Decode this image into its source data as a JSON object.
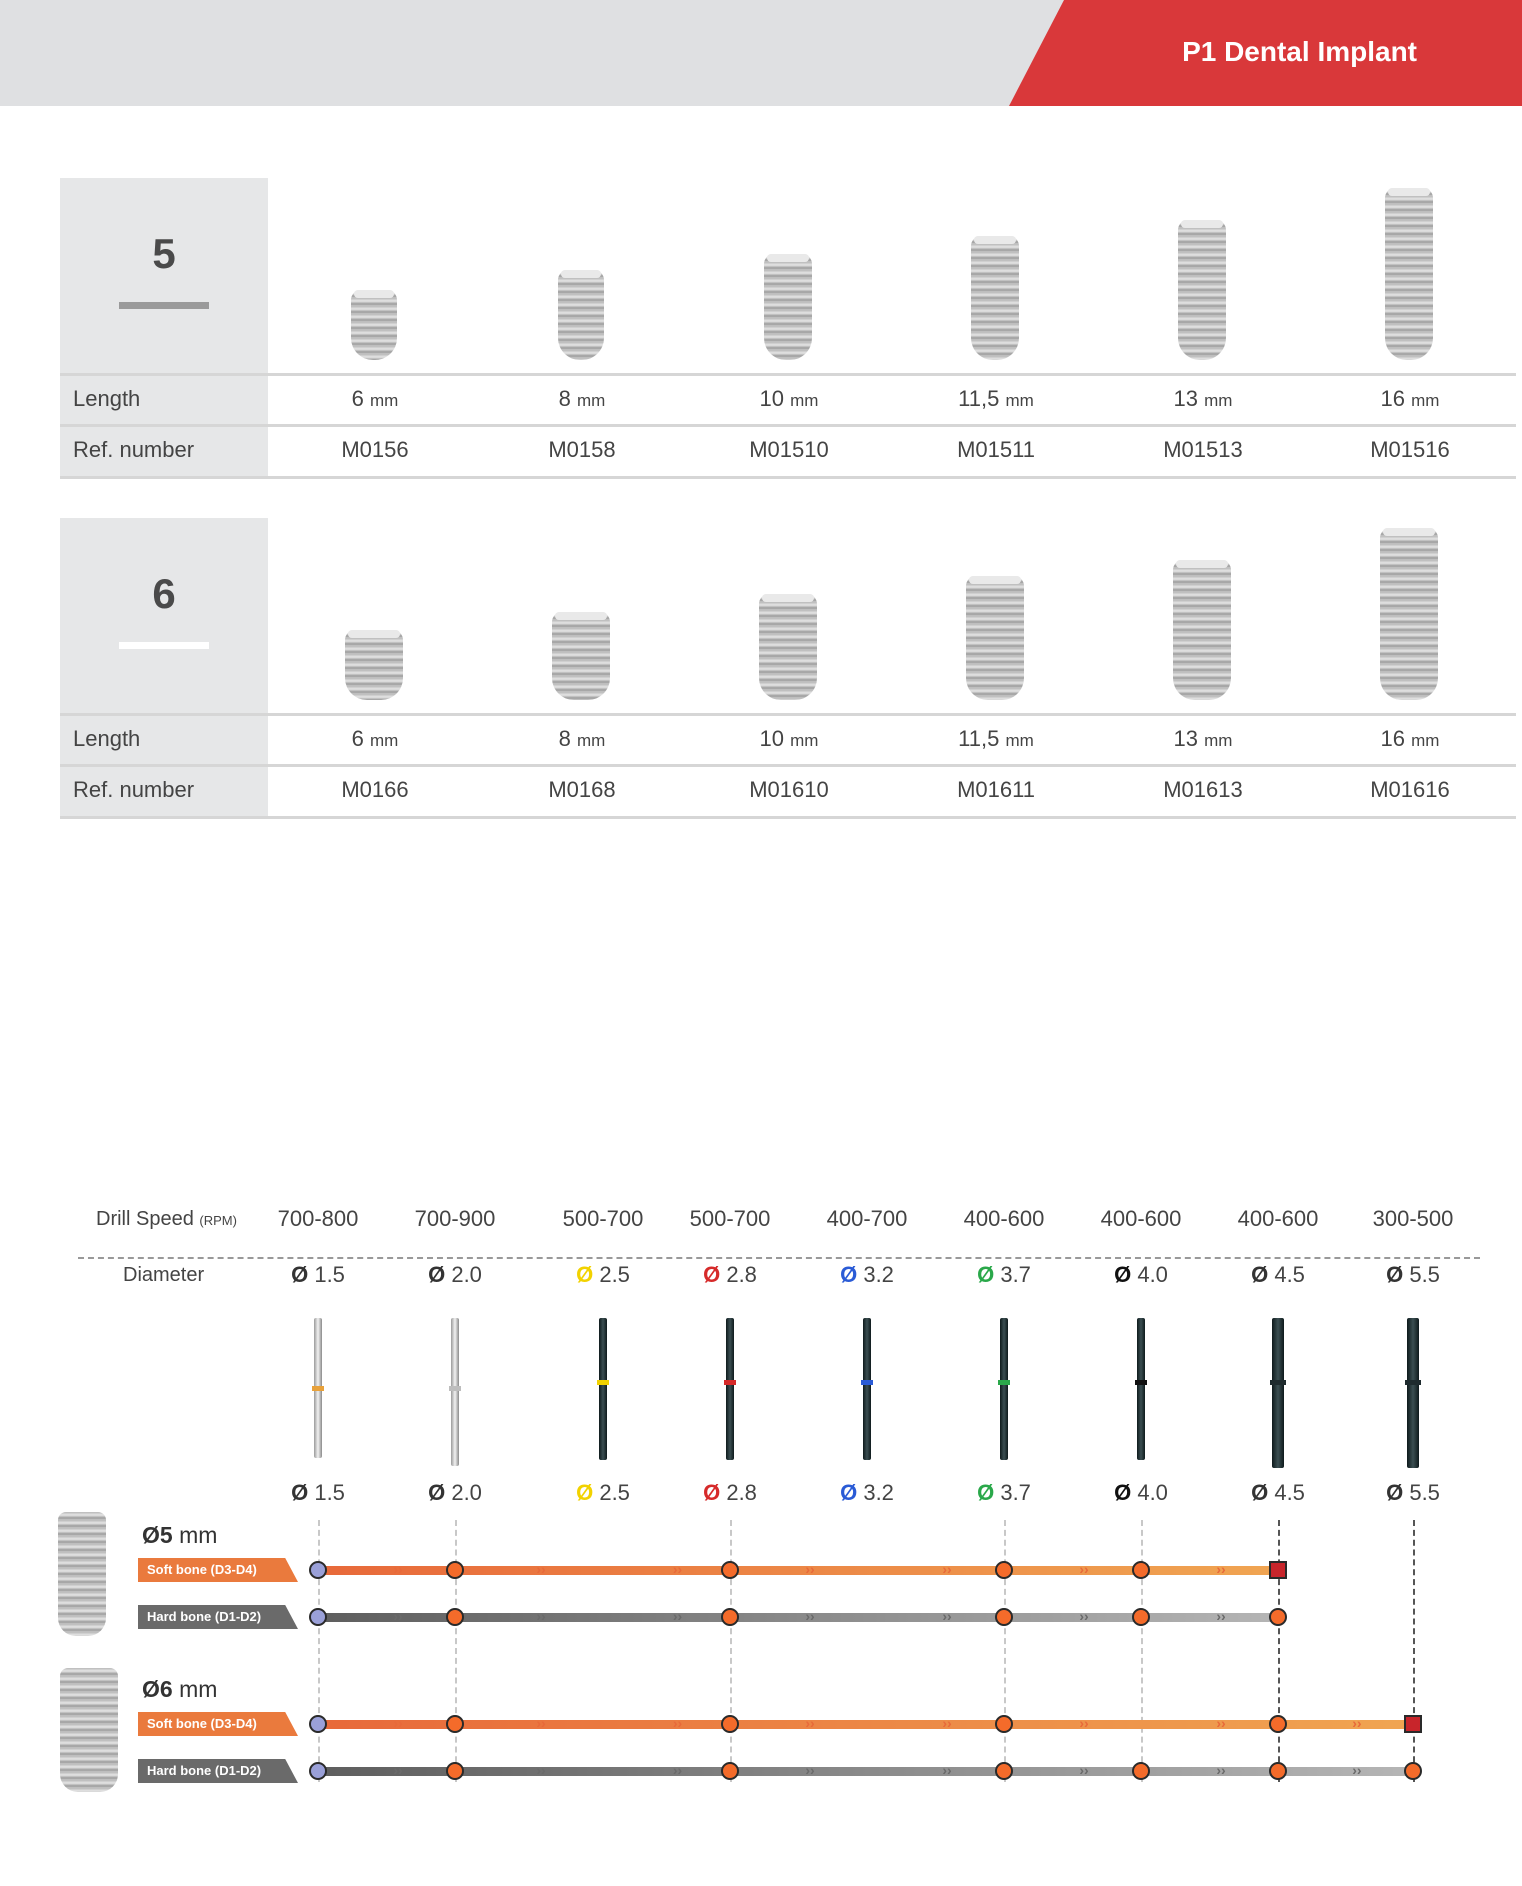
{
  "header": {
    "title": "P1 Dental Implant"
  },
  "colors": {
    "accent": "#d9383a",
    "soft_bone": "#ea7a3d",
    "hard_bone": "#6a6a6a",
    "node_orange": "#f46b2a",
    "node_purple": "#9aa0d8"
  },
  "tables": [
    {
      "diameter": "5",
      "bar_color": "#9a9a9a",
      "length_label": "Length",
      "ref_label": "Ref. number",
      "lengths": [
        {
          "value": "6",
          "unit": "mm"
        },
        {
          "value": "8",
          "unit": "mm"
        },
        {
          "value": "10",
          "unit": "mm"
        },
        {
          "value": "11,5",
          "unit": "mm"
        },
        {
          "value": "13",
          "unit": "mm"
        },
        {
          "value": "16",
          "unit": "mm"
        }
      ],
      "refs": [
        "M0156",
        "M0158",
        "M01510",
        "M01511",
        "M01513",
        "M01516"
      ]
    },
    {
      "diameter": "6",
      "bar_color": "#ffffff",
      "length_label": "Length",
      "ref_label": "Ref. number",
      "lengths": [
        {
          "value": "6",
          "unit": "mm"
        },
        {
          "value": "8",
          "unit": "mm"
        },
        {
          "value": "10",
          "unit": "mm"
        },
        {
          "value": "11,5",
          "unit": "mm"
        },
        {
          "value": "13",
          "unit": "mm"
        },
        {
          "value": "16",
          "unit": "mm"
        }
      ],
      "refs": [
        "M0166",
        "M0168",
        "M01610",
        "M01611",
        "M01613",
        "M01616"
      ]
    }
  ],
  "drills": {
    "speed_label": "Drill Speed",
    "speed_unit": "(RPM)",
    "diameter_label": "Diameter",
    "speeds": [
      "700-800",
      "700-900",
      "500-700",
      "500-700",
      "400-700",
      "400-600",
      "400-600",
      "400-600",
      "300-500"
    ],
    "diameters": [
      {
        "value": "1.5",
        "symbol_color": "#333333",
        "band_color": "#e8a13a",
        "body": "silver"
      },
      {
        "value": "2.0",
        "symbol_color": "#333333",
        "band_color": "#bdbdbd",
        "body": "silver"
      },
      {
        "value": "2.5",
        "symbol_color": "#f2d200",
        "band_color": "#f2d200",
        "body": "dark"
      },
      {
        "value": "2.8",
        "symbol_color": "#d62a2a",
        "band_color": "#d62a2a",
        "body": "dark"
      },
      {
        "value": "3.2",
        "symbol_color": "#2a5bd6",
        "band_color": "#2a5bd6",
        "body": "dark"
      },
      {
        "value": "3.7",
        "symbol_color": "#2aa84a",
        "band_color": "#2aa84a",
        "body": "dark"
      },
      {
        "value": "4.0",
        "symbol_color": "#111111",
        "band_color": "#111111",
        "body": "dark"
      },
      {
        "value": "4.5",
        "symbol_color": "#333333",
        "band_color": "#1e2b2e",
        "body": "dark"
      },
      {
        "value": "5.5",
        "symbol_color": "#333333",
        "band_color": "#1e2b2e",
        "body": "dark"
      }
    ]
  },
  "protocol": [
    {
      "diameter": "5",
      "unit": "mm",
      "tracks": [
        {
          "label": "Soft bone (D3-D4)",
          "type": "soft",
          "stops": [
            "purple",
            "orange",
            null,
            "orange",
            null,
            "orange",
            "orange",
            "square",
            null
          ]
        },
        {
          "label": "Hard bone (D1-D2)",
          "type": "hard",
          "stops": [
            "purple",
            "orange",
            null,
            "orange",
            null,
            "orange",
            "orange",
            "orange",
            null
          ]
        }
      ]
    },
    {
      "diameter": "6",
      "unit": "mm",
      "tracks": [
        {
          "label": "Soft bone (D3-D4)",
          "type": "soft",
          "stops": [
            "purple",
            "orange",
            null,
            "orange",
            null,
            "orange",
            null,
            "orange",
            "square"
          ]
        },
        {
          "label": "Hard bone (D1-D2)",
          "type": "hard",
          "stops": [
            "purple",
            "orange",
            null,
            "orange",
            null,
            "orange",
            "orange",
            "orange",
            "orange"
          ]
        }
      ]
    }
  ]
}
